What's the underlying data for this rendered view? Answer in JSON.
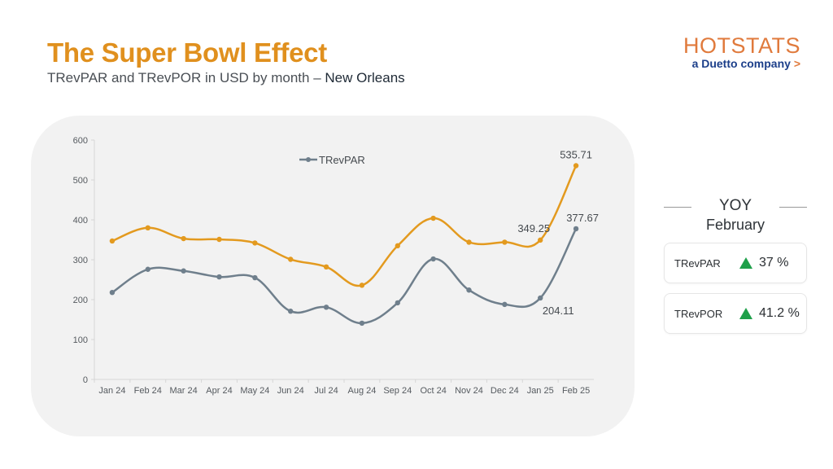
{
  "header": {
    "title": "The Super Bowl Effect",
    "subtitle_prefix": "TRevPAR and TRevPOR in USD by month – ",
    "subtitle_location": "New Orleans"
  },
  "logo": {
    "brand": "HOTSTATS",
    "tagline": "a Duetto company",
    "tagline_chevron": ">"
  },
  "yoy": {
    "title": "YOY",
    "month": "February",
    "metrics": [
      {
        "name": "TRevPAR",
        "direction": "up",
        "value": "37 %"
      },
      {
        "name": "TRevPOR",
        "direction": "up",
        "value": "41.2 %"
      }
    ]
  },
  "colors": {
    "title": "#e0901e",
    "trevpor": "#e39a1f",
    "trevpar": "#6f7f8c",
    "up_arrow": "#1fa04a",
    "card_bg": "#f2f2f2"
  },
  "chart_data": {
    "type": "line",
    "title": "",
    "xlabel": "",
    "ylabel": "",
    "ylim": [
      0,
      600
    ],
    "yticks": [
      0,
      100,
      200,
      300,
      400,
      500,
      600
    ],
    "categories": [
      "Jan 24",
      "Feb 24",
      "Mar 24",
      "Apr 24",
      "May 24",
      "Jun 24",
      "Jul 24",
      "Aug 24",
      "Sep 24",
      "Oct 24",
      "Nov 24",
      "Dec 24",
      "Jan 25",
      "Feb 25"
    ],
    "legend": {
      "entries": [
        "TRevPAR"
      ],
      "position": "top-center"
    },
    "grid": false,
    "series": [
      {
        "name": "TRevPOR",
        "color": "#e39a1f",
        "values": [
          347,
          380,
          353,
          351,
          342,
          301,
          282,
          236,
          335,
          404,
          344,
          344,
          349.25,
          535.71
        ],
        "labels": {
          "12": "349.25",
          "13": "535.71"
        }
      },
      {
        "name": "TRevPAR",
        "color": "#6f7f8c",
        "values": [
          218,
          276,
          272,
          257,
          255,
          171,
          181,
          141,
          192,
          302,
          224,
          188,
          204.11,
          377.67
        ],
        "labels": {
          "12": "204.11",
          "13": "377.67"
        }
      }
    ]
  }
}
